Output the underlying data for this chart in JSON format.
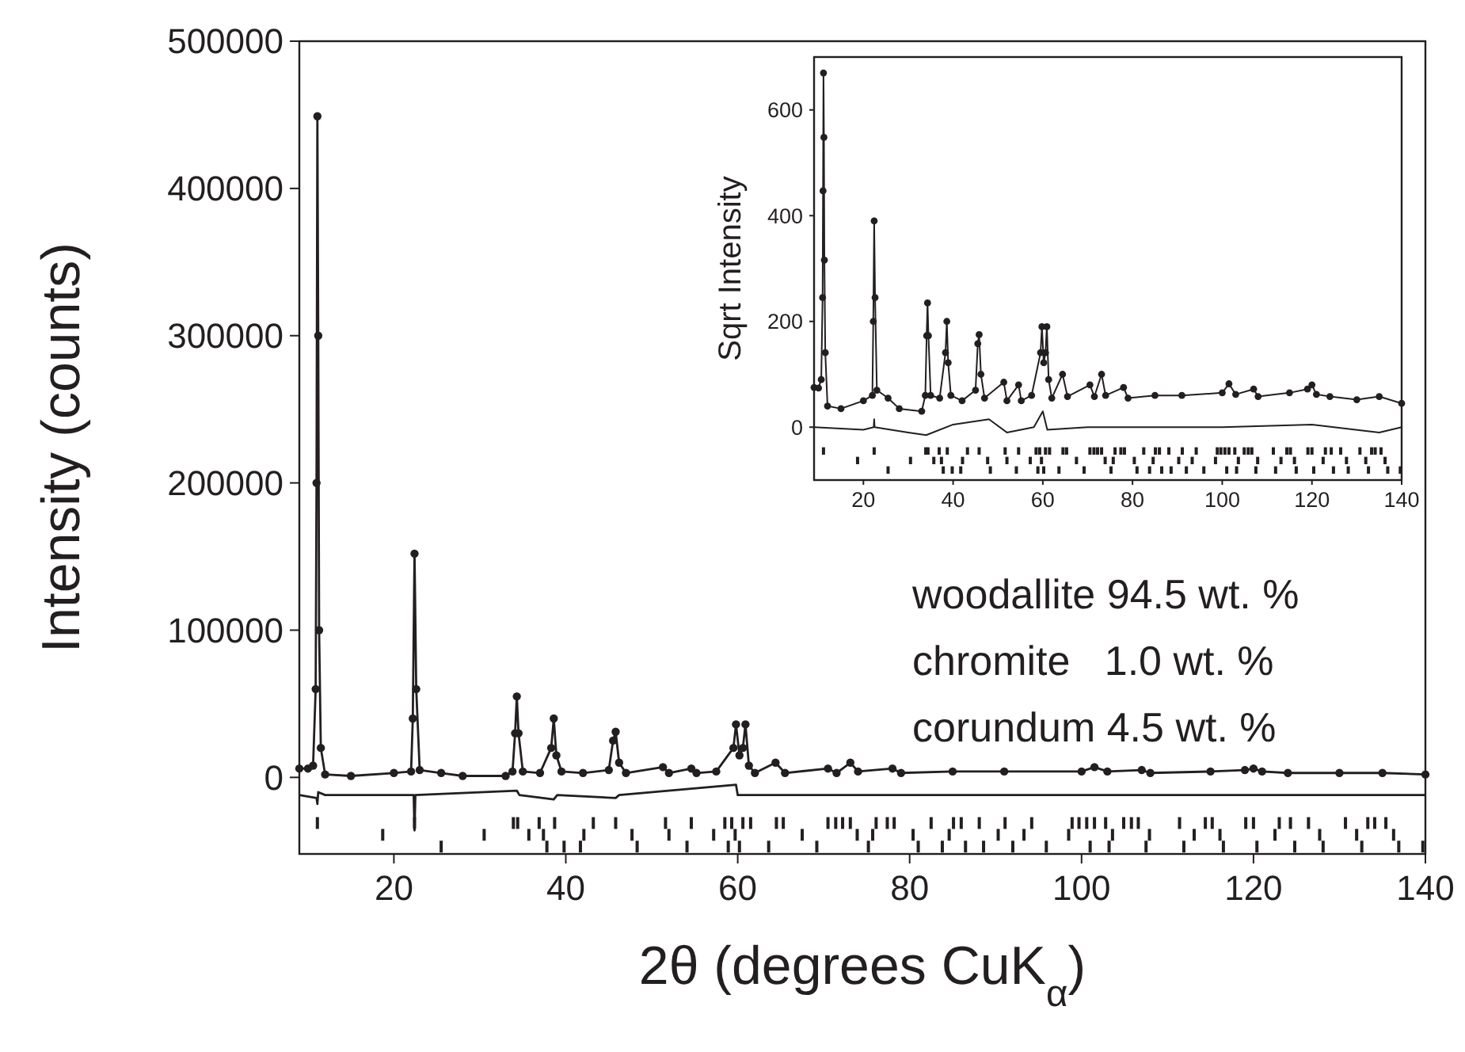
{
  "chart_data": [
    {
      "type": "line",
      "xlabel": "2θ (degrees CuK$_{α}$)",
      "ylabel": "Intensity (counts)",
      "xlim": [
        9,
        140
      ],
      "ylim": [
        -52000,
        500000
      ],
      "xticks": [
        20,
        40,
        60,
        80,
        100,
        120,
        140
      ],
      "yticks": [
        0,
        100000,
        200000,
        300000,
        400000,
        500000
      ],
      "annotations": [
        "woodallite 94.5 wt. %",
        "chromite   1.0 wt. %",
        "corundum 4.5 wt. %"
      ],
      "series": [
        {
          "marker": "circle",
          "color": "#231f20",
          "x": [
            9,
            10,
            10.6,
            10.9,
            11.0,
            11.1,
            11.2,
            11.3,
            11.5,
            12,
            15,
            20,
            22,
            22.2,
            22.4,
            22.6,
            23,
            25.5,
            28,
            33,
            33.8,
            34.1,
            34.3,
            34.5,
            35,
            37,
            38.3,
            38.6,
            38.9,
            39.5,
            42,
            45,
            45.5,
            45.8,
            46.2,
            47,
            51.3,
            52,
            54.6,
            55.2,
            57.5,
            59.5,
            59.8,
            60.2,
            60.6,
            60.9,
            61.3,
            62,
            64.4,
            65.5,
            70.5,
            71.5,
            73.1,
            74,
            78,
            79,
            85,
            91,
            100,
            101.5,
            103,
            107,
            108,
            115,
            119,
            120,
            121,
            124,
            130,
            135,
            140
          ],
          "values": [
            6000,
            6000,
            8000,
            60000,
            200000,
            449000,
            300000,
            100000,
            20000,
            2000,
            1000,
            3000,
            4000,
            40000,
            152000,
            60000,
            5000,
            3000,
            1000,
            1000,
            4000,
            30000,
            55000,
            30000,
            4000,
            3000,
            20000,
            40000,
            15000,
            4000,
            3000,
            5000,
            25000,
            31000,
            10000,
            3000,
            7000,
            3000,
            6000,
            3000,
            4000,
            20000,
            36000,
            15000,
            20000,
            36000,
            8000,
            3000,
            10000,
            3000,
            6000,
            3000,
            10000,
            4000,
            6000,
            3000,
            4000,
            4000,
            4000,
            7000,
            4000,
            5000,
            3000,
            4000,
            5000,
            6000,
            4000,
            3000,
            3000,
            3000,
            2000
          ]
        },
        {
          "marker": "none",
          "color": "#231f20",
          "x": [
            9,
            11,
            11.1,
            11.2,
            12,
            22.3,
            22.4,
            22.5,
            34.3,
            34.6,
            38.6,
            39,
            45.8,
            46.2,
            59.8,
            60,
            140
          ],
          "values": [
            -12000,
            -14000,
            -18000,
            -10000,
            -12000,
            -12000,
            -36000,
            -12000,
            -9000,
            -12000,
            -15000,
            -12000,
            -14000,
            -12000,
            -5000,
            -12000,
            -12000
          ]
        },
        {
          "type": "bar",
          "color": "#231f20",
          "x": [
            11.1,
            18.7,
            22.4,
            25.5,
            30.5,
            33.9,
            34.4,
            35.7,
            36.9,
            37.4,
            37.8,
            38.7,
            39.8,
            41.7,
            42.1,
            43.2,
            45.8,
            47.7,
            48.3,
            51.6,
            52.0,
            54.1,
            54.6,
            57.2,
            58.5,
            58.9,
            59.3,
            59.7,
            60.2,
            60.6,
            61.5,
            63.6,
            64.5,
            65.3,
            67.5,
            69.2,
            70.5,
            71.4,
            72.2,
            73.1,
            73.9,
            75.2,
            75.7,
            76.1,
            77.4,
            78.2,
            80.4,
            81.0,
            82.5,
            83.8,
            84.6,
            85.1,
            86.0,
            86.5,
            88.1,
            88.6,
            90.3,
            91.1,
            92.0,
            93.3,
            94.2,
            95.9,
            98.5,
            98.9,
            99.7,
            100.6,
            101.0,
            101.5,
            102.8,
            103.2,
            103.6,
            104.9,
            105.8,
            106.6,
            107.5,
            107.9,
            111.4,
            111.9,
            113.1,
            114.4,
            115.2,
            116.1,
            116.5,
            119.1,
            120.0,
            120.4,
            122.5,
            123.0,
            124.3,
            124.8,
            126.4,
            127.7,
            128.1,
            130.7,
            132.0,
            132.6,
            133.3,
            134.1,
            135.4,
            136.3,
            136.9,
            139.7
          ],
          "base": [
            -35000,
            -43000,
            -35000,
            -51000,
            -43000,
            -35000,
            -35000,
            -43000,
            -35000,
            -43000,
            -51000,
            -35000,
            -51000,
            -51000,
            -43000,
            -35000,
            -35000,
            -43000,
            -51000,
            -35000,
            -43000,
            -51000,
            -35000,
            -43000,
            -35000,
            -51000,
            -35000,
            -43000,
            -51000,
            -35000,
            -35000,
            -51000,
            -35000,
            -35000,
            -43000,
            -51000,
            -35000,
            -35000,
            -35000,
            -35000,
            -43000,
            -51000,
            -43000,
            -35000,
            -35000,
            -35000,
            -43000,
            -51000,
            -35000,
            -51000,
            -43000,
            -35000,
            -35000,
            -51000,
            -35000,
            -51000,
            -43000,
            -35000,
            -51000,
            -43000,
            -35000,
            -51000,
            -43000,
            -35000,
            -35000,
            -35000,
            -51000,
            -35000,
            -35000,
            -51000,
            -43000,
            -35000,
            -35000,
            -35000,
            -51000,
            -43000,
            -35000,
            -51000,
            -43000,
            -35000,
            -35000,
            -43000,
            -51000,
            -35000,
            -35000,
            -51000,
            -43000,
            -35000,
            -35000,
            -51000,
            -35000,
            -43000,
            -51000,
            -35000,
            -43000,
            -51000,
            -35000,
            -35000,
            -35000,
            -43000,
            -51000,
            -51000
          ],
          "values": [
            8000,
            8000,
            8000,
            8000,
            8000,
            8000,
            8000,
            8000,
            8000,
            8000,
            8000,
            8000,
            8000,
            8000,
            8000,
            8000,
            8000,
            8000,
            8000,
            8000,
            8000,
            8000,
            8000,
            8000,
            8000,
            8000,
            8000,
            8000,
            8000,
            8000,
            8000,
            8000,
            8000,
            8000,
            8000,
            8000,
            8000,
            8000,
            8000,
            8000,
            8000,
            8000,
            8000,
            8000,
            8000,
            8000,
            8000,
            8000,
            8000,
            8000,
            8000,
            8000,
            8000,
            8000,
            8000,
            8000,
            8000,
            8000,
            8000,
            8000,
            8000,
            8000,
            8000,
            8000,
            8000,
            8000,
            8000,
            8000,
            8000,
            8000,
            8000,
            8000,
            8000,
            8000,
            8000,
            8000,
            8000,
            8000,
            8000,
            8000,
            8000,
            8000,
            8000,
            8000,
            8000,
            8000,
            8000,
            8000,
            8000,
            8000,
            8000,
            8000,
            8000,
            8000,
            8000,
            8000,
            8000,
            8000,
            8000,
            8000,
            8000,
            8000
          ]
        }
      ]
    },
    {
      "type": "line",
      "ylabel": "Sqrt Intensity",
      "xlim": [
        9,
        140
      ],
      "ylim": [
        -100,
        700
      ],
      "xticks": [
        20,
        40,
        60,
        80,
        100,
        120,
        140
      ],
      "yticks": [
        0,
        200,
        400,
        600
      ],
      "series": [
        {
          "marker": "circle",
          "color": "#231f20",
          "x": [
            9,
            10,
            10.6,
            10.9,
            11.0,
            11.1,
            11.2,
            11.3,
            11.5,
            12,
            15,
            20,
            22,
            22.2,
            22.4,
            22.6,
            23,
            25.5,
            28,
            33,
            33.8,
            34.1,
            34.3,
            34.5,
            35,
            37,
            38.3,
            38.6,
            38.9,
            39.5,
            42,
            45,
            45.5,
            45.8,
            46.2,
            47,
            51.3,
            52,
            54.6,
            55.2,
            57.5,
            59.5,
            59.8,
            60.2,
            60.6,
            60.9,
            61.3,
            62,
            64.4,
            65.5,
            70.5,
            71.5,
            73.1,
            74,
            78,
            79,
            85,
            91,
            100,
            101.5,
            103,
            107,
            108,
            115,
            119,
            120,
            121,
            124,
            130,
            135,
            140
          ],
          "values": [
            75,
            74,
            90,
            245,
            447,
            670,
            548,
            316,
            141,
            40,
            35,
            50,
            60,
            200,
            390,
            245,
            70,
            55,
            35,
            30,
            60,
            173,
            235,
            173,
            60,
            55,
            141,
            200,
            122,
            60,
            50,
            70,
            158,
            175,
            100,
            55,
            85,
            50,
            80,
            50,
            60,
            141,
            190,
            122,
            141,
            190,
            90,
            55,
            100,
            58,
            80,
            58,
            100,
            60,
            75,
            55,
            60,
            60,
            65,
            82,
            62,
            72,
            58,
            65,
            72,
            80,
            62,
            58,
            52,
            58,
            45
          ]
        },
        {
          "marker": "none",
          "color": "#231f20",
          "x": [
            9,
            20,
            22.3,
            22.4,
            22.5,
            30,
            34,
            40,
            48,
            52,
            58,
            60,
            61,
            70,
            100,
            120,
            135,
            140
          ],
          "values": [
            0,
            -5,
            0,
            15,
            0,
            -10,
            -15,
            5,
            15,
            -10,
            0,
            30,
            -5,
            0,
            0,
            5,
            -10,
            0
          ]
        },
        {
          "type": "bar",
          "color": "#231f20",
          "x": [
            11.1,
            18.7,
            22.4,
            25.5,
            30.5,
            33.9,
            34.4,
            35.7,
            36.9,
            37.4,
            37.8,
            38.7,
            39.8,
            41.7,
            42.1,
            43.2,
            45.8,
            47.7,
            48.3,
            51.6,
            52.0,
            54.1,
            54.6,
            57.2,
            58.5,
            58.9,
            59.3,
            59.7,
            60.2,
            60.6,
            61.5,
            63.6,
            64.5,
            65.3,
            67.5,
            69.2,
            70.5,
            71.4,
            72.2,
            73.1,
            73.9,
            75.2,
            75.7,
            76.1,
            77.4,
            78.2,
            80.4,
            81.0,
            82.5,
            83.8,
            84.6,
            85.1,
            86.0,
            86.5,
            88.1,
            88.6,
            90.3,
            91.1,
            92.0,
            93.3,
            94.2,
            95.9,
            98.5,
            98.9,
            99.7,
            100.6,
            101.0,
            101.5,
            102.8,
            103.2,
            103.6,
            104.9,
            105.8,
            106.6,
            107.5,
            107.9,
            111.4,
            111.9,
            113.1,
            114.4,
            115.2,
            116.1,
            116.5,
            119.1,
            120.0,
            120.4,
            122.5,
            123.0,
            124.3,
            124.8,
            126.4,
            127.7,
            128.1,
            130.7,
            132.0,
            132.6,
            133.3,
            134.1,
            135.4,
            136.3,
            136.9,
            139.7
          ],
          "base": [
            -52,
            -70,
            -52,
            -88,
            -70,
            -52,
            -52,
            -70,
            -52,
            -70,
            -88,
            -52,
            -88,
            -88,
            -70,
            -52,
            -52,
            -70,
            -88,
            -52,
            -70,
            -88,
            -52,
            -70,
            -52,
            -88,
            -52,
            -70,
            -88,
            -52,
            -52,
            -88,
            -52,
            -52,
            -70,
            -88,
            -52,
            -52,
            -52,
            -52,
            -70,
            -88,
            -70,
            -52,
            -52,
            -52,
            -70,
            -88,
            -52,
            -88,
            -70,
            -52,
            -52,
            -88,
            -52,
            -88,
            -70,
            -52,
            -88,
            -70,
            -52,
            -88,
            -70,
            -52,
            -52,
            -52,
            -88,
            -52,
            -52,
            -88,
            -70,
            -52,
            -52,
            -52,
            -88,
            -70,
            -52,
            -88,
            -70,
            -52,
            -52,
            -70,
            -88,
            -52,
            -52,
            -88,
            -70,
            -52,
            -52,
            -88,
            -52,
            -70,
            -88,
            -52,
            -70,
            -88,
            -52,
            -52,
            -52,
            -70,
            -88,
            -88
          ],
          "values": [
            14,
            14,
            14,
            14,
            14,
            14,
            14,
            14,
            14,
            14,
            14,
            14,
            14,
            14,
            14,
            14,
            14,
            14,
            14,
            14,
            14,
            14,
            14,
            14,
            14,
            14,
            14,
            14,
            14,
            14,
            14,
            14,
            14,
            14,
            14,
            14,
            14,
            14,
            14,
            14,
            14,
            14,
            14,
            14,
            14,
            14,
            14,
            14,
            14,
            14,
            14,
            14,
            14,
            14,
            14,
            14,
            14,
            14,
            14,
            14,
            14,
            14,
            14,
            14,
            14,
            14,
            14,
            14,
            14,
            14,
            14,
            14,
            14,
            14,
            14,
            14,
            14,
            14,
            14,
            14,
            14,
            14,
            14,
            14,
            14,
            14,
            14,
            14,
            14,
            14,
            14,
            14,
            14,
            14,
            14,
            14,
            14,
            14,
            14,
            14,
            14,
            14
          ]
        }
      ]
    }
  ]
}
